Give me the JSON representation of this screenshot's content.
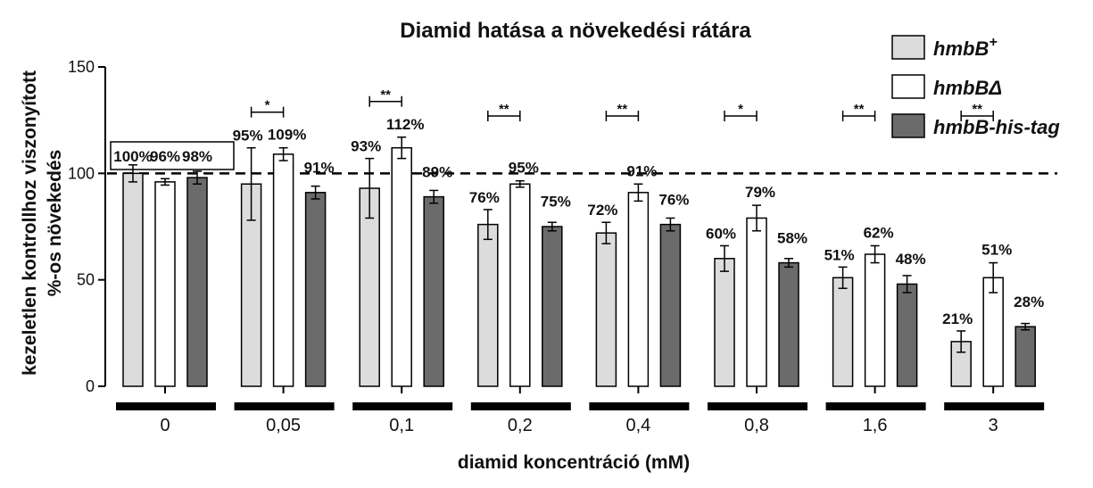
{
  "chart_data": {
    "type": "bar",
    "title": "Diamid hatása a növekedési rátára",
    "xlabel": "diamid koncentráció (mM)",
    "ylabel_line1": "kezeletlen kontrollhoz viszonyított",
    "ylabel_line2": "%-os növekedés",
    "ylim": [
      0,
      150
    ],
    "yticks": [
      "0",
      "50",
      "100",
      "150"
    ],
    "reference_line": 100,
    "categories": [
      "0",
      "0,05",
      "0,1",
      "0,2",
      "0,4",
      "0,8",
      "1,6",
      "3"
    ],
    "series": [
      {
        "name_base": "hmbB",
        "name_suffix": "+",
        "color": "#dcdcdc",
        "values": [
          100,
          95,
          93,
          76,
          72,
          60,
          51,
          21
        ],
        "errors": [
          4,
          17,
          14,
          7,
          5,
          6,
          5,
          5
        ],
        "labels": [
          "100%",
          "95%",
          "93%",
          "76%",
          "72%",
          "60%",
          "51%",
          "21%"
        ]
      },
      {
        "name_base": "hmbB",
        "name_suffix": "Δ",
        "color": "#ffffff",
        "values": [
          96,
          109,
          112,
          95,
          91,
          79,
          62,
          51
        ],
        "errors": [
          1.5,
          3,
          5,
          1.5,
          4,
          6,
          4,
          7
        ],
        "labels": [
          "96%",
          "109%",
          "112%",
          "95%",
          "91%",
          "79%",
          "62%",
          "51%"
        ]
      },
      {
        "name_base": "hmbB-his-tag",
        "name_suffix": "",
        "color": "#6b6b6b",
        "values": [
          98,
          91,
          89,
          75,
          76,
          58,
          48,
          28
        ],
        "errors": [
          3,
          3,
          3,
          2,
          3,
          2,
          4,
          1.5
        ],
        "labels": [
          "98%",
          "91%",
          "89%",
          "75%",
          "76%",
          "58%",
          "48%",
          "28%"
        ]
      }
    ],
    "significance": [
      "",
      "*",
      "**",
      "**",
      "**",
      "*",
      "**",
      "**"
    ],
    "legend_position": "top-right"
  }
}
